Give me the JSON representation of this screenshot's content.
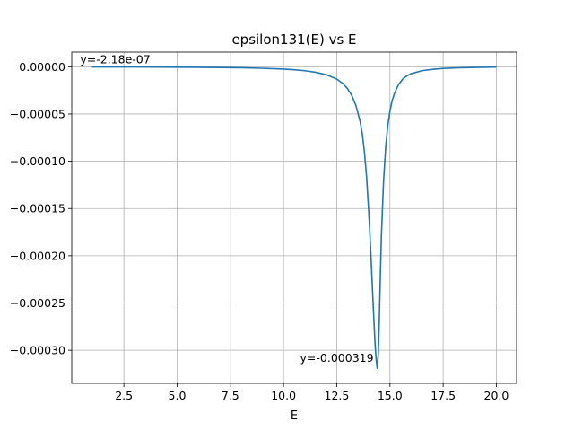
{
  "chart_data": {
    "type": "line",
    "title": "epsilon131(E) vs E",
    "xlabel": "E",
    "ylabel": "",
    "xlim": [
      0.05,
      20.95
    ],
    "ylim": [
      -0.000335,
      1.55e-05
    ],
    "xticks": [
      2.5,
      5.0,
      7.5,
      10.0,
      12.5,
      15.0,
      17.5,
      20.0
    ],
    "xtick_labels": [
      "2.5",
      "5.0",
      "7.5",
      "10.0",
      "12.5",
      "15.0",
      "17.5",
      "20.0"
    ],
    "yticks": [
      0.0,
      -5e-05,
      -0.0001,
      -0.00015,
      -0.0002,
      -0.00025,
      -0.0003
    ],
    "ytick_labels": [
      "0.00000",
      "−0.00005",
      "−0.00010",
      "−0.00015",
      "−0.00020",
      "−0.00025",
      "−0.00030"
    ],
    "grid": true,
    "line_color": "#1f77b4",
    "series": [
      {
        "x": [
          1.0,
          2.0,
          3.0,
          4.0,
          5.0,
          6.0,
          7.0,
          8.0,
          9.0,
          10.0,
          10.5,
          11.0,
          11.5,
          12.0,
          12.5,
          12.8,
          13.0,
          13.2,
          13.4,
          13.6,
          13.7,
          13.8,
          13.9,
          14.0,
          14.1,
          14.2,
          14.3,
          14.35,
          14.4,
          14.45,
          14.5,
          14.55,
          14.6,
          14.7,
          14.8,
          14.9,
          15.0,
          15.1,
          15.2,
          15.4,
          15.6,
          15.8,
          16.0,
          16.5,
          17.0,
          17.5,
          18.0,
          19.0,
          20.0
        ],
        "y": [
          -2.18e-07,
          -2.5e-07,
          -3e-07,
          -3.7e-07,
          -4.6e-07,
          -6e-07,
          -8e-07,
          -1.1e-06,
          -1.6e-06,
          -2.5e-06,
          -3.2e-06,
          -4.2e-06,
          -5.8e-06,
          -8.4e-06,
          -1.3e-05,
          -1.8e-05,
          -2.3e-05,
          -3e-05,
          -4.1e-05,
          -5.8e-05,
          -7.1e-05,
          -9e-05,
          -0.000116,
          -0.000152,
          -0.000196,
          -0.000246,
          -0.000293,
          -0.000309,
          -0.000319,
          -0.000305,
          -0.000268,
          -0.00022,
          -0.000178,
          -0.000121,
          -8.5e-05,
          -6.2e-05,
          -4.7e-05,
          -3.6e-05,
          -2.9e-05,
          -1.9e-05,
          -1.3e-05,
          -9.6e-06,
          -7.3e-06,
          -4.2e-06,
          -2.7e-06,
          -1.8e-06,
          -1.3e-06,
          -7e-07,
          -4e-07
        ]
      }
    ],
    "annotations": [
      {
        "text": "y=-2.18e-07",
        "x": 1.0,
        "y": -2.18e-07
      },
      {
        "text": "y=-0.000319",
        "x": 14.4,
        "y": -0.000319
      }
    ]
  }
}
